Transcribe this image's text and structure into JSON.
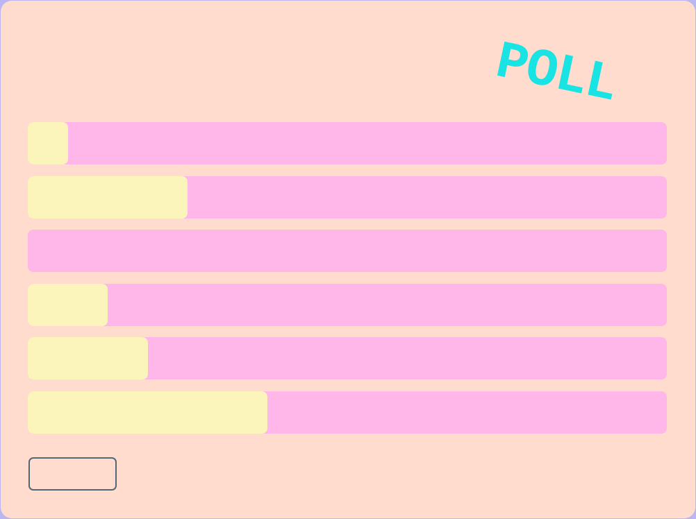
{
  "title": "POLL",
  "colors": {
    "accent": "#1ae3e3",
    "bar_track": "#ffb6e9",
    "bar_fill": "#fcf5bb",
    "background": "#ffdccd",
    "frame": "#b9b6f2"
  },
  "poll": {
    "options": [
      {
        "fraction": 0.0625
      },
      {
        "fraction": 0.25
      },
      {
        "fraction": 0
      },
      {
        "fraction": 0.125
      },
      {
        "fraction": 0.1875
      },
      {
        "fraction": 0.375
      }
    ]
  },
  "button": {
    "label": ""
  }
}
